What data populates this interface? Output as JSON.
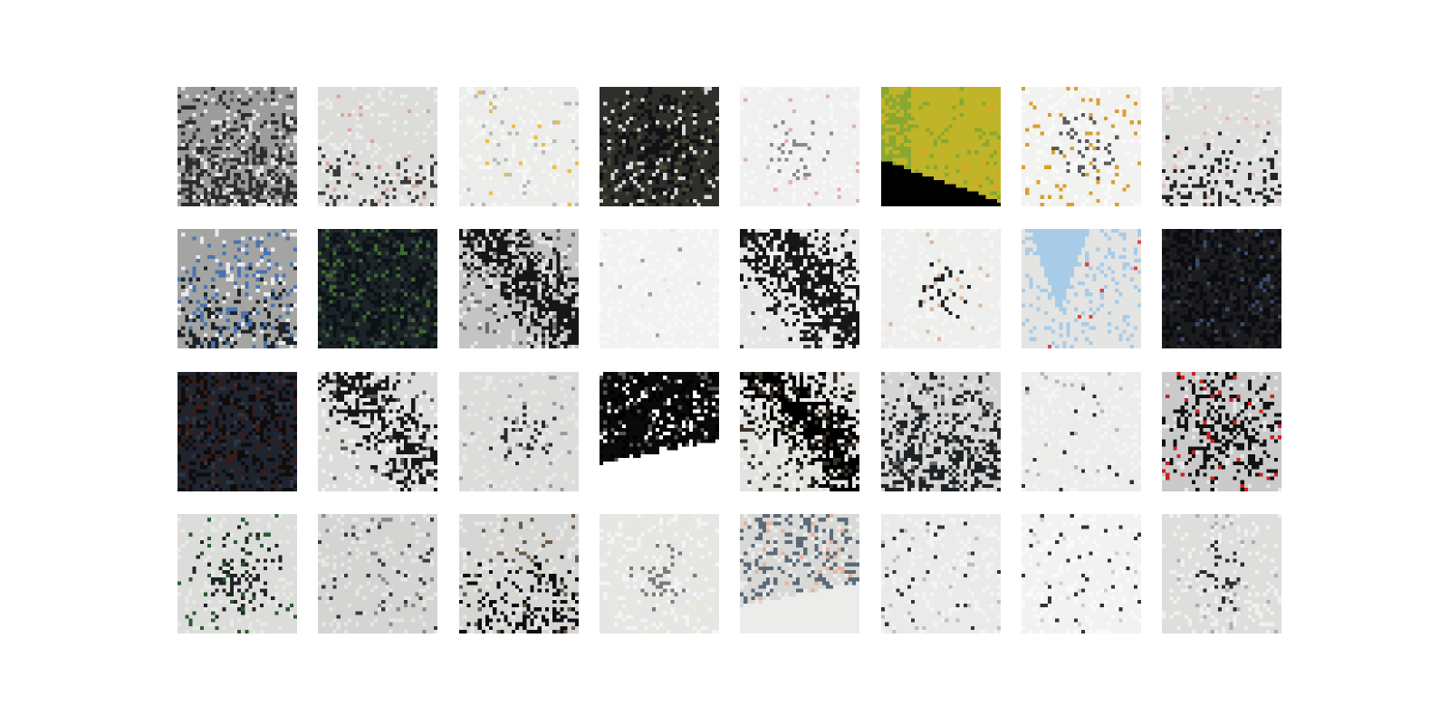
{
  "grid": {
    "rows": 4,
    "cols": 8,
    "tiles": [
      {
        "name": "tile-r1-c1",
        "base": "#9c9c9a",
        "light": "#e6e6e4",
        "dark": "#2c2c2e",
        "accent": "#5a5a5c",
        "dark_share": 0.3,
        "light_share": 0.18,
        "direction": "bottom",
        "accent_share": 0.04
      },
      {
        "name": "tile-r1-c2",
        "base": "#dcdcda",
        "light": "#ececea",
        "dark": "#3a3a3a",
        "accent": "#d8a8a0",
        "dark_share": 0.04,
        "light_share": 0.25,
        "direction": "bottom",
        "accent_share": 0.02
      },
      {
        "name": "tile-r1-c3",
        "base": "#ececea",
        "light": "#f6f6f4",
        "dark": "#b8b8b8",
        "accent": "#e8c040",
        "dark_share": 0.03,
        "light_share": 0.3,
        "direction": "none",
        "accent_share": 0.015
      },
      {
        "name": "tile-r1-c4",
        "base": "#2e2e2a",
        "light": "#d8d8d6",
        "dark": "#101214",
        "accent": "#4a4a38",
        "dark_share": 0.35,
        "light_share": 0.22,
        "direction": "center",
        "accent_share": 0.05
      },
      {
        "name": "tile-r1-c5",
        "base": "#f0f0f0",
        "light": "#f8f8f8",
        "dark": "#8a8a8a",
        "accent": "#e0b0b0",
        "dark_share": 0.03,
        "light_share": 0.3,
        "direction": "center",
        "accent_share": 0.02
      },
      {
        "name": "tile-r1-c6",
        "base": "#c0b428",
        "light": "#8aa830",
        "dark": "#000000",
        "accent": "#e8a020",
        "dark_share": 0.12,
        "light_share": 0.18,
        "direction": "yellow",
        "accent_share": 0.02
      },
      {
        "name": "tile-r1-c7",
        "base": "#f2f2f0",
        "light": "#fafafa",
        "dark": "#5a5a5a",
        "accent": "#d8a030",
        "dark_share": 0.05,
        "light_share": 0.25,
        "direction": "center",
        "accent_share": 0.06
      },
      {
        "name": "tile-r1-c8",
        "base": "#dededc",
        "light": "#ececea",
        "dark": "#202428",
        "accent": "#e8b8b0",
        "dark_share": 0.07,
        "light_share": 0.25,
        "direction": "bottom",
        "accent_share": 0.015
      },
      {
        "name": "tile-r2-c1",
        "base": "#a4a4a2",
        "light": "#eaeaea",
        "dark": "#1e2226",
        "accent": "#4a74b0",
        "dark_share": 0.12,
        "light_share": 0.15,
        "direction": "bottom",
        "accent_share": 0.12
      },
      {
        "name": "tile-r2-c2",
        "base": "#1c2428",
        "light": "#34403c",
        "dark": "#0c1216",
        "accent": "#3e6a30",
        "dark_share": 0.35,
        "light_share": 0.15,
        "direction": "none",
        "accent_share": 0.08
      },
      {
        "name": "tile-r2-c3",
        "base": "#c4c4c2",
        "light": "#e8e8e6",
        "dark": "#141618",
        "accent": "#6a6a6a",
        "dark_share": 0.35,
        "light_share": 0.2,
        "direction": "diagonal",
        "accent_share": 0.05
      },
      {
        "name": "tile-r2-c4",
        "base": "#f2f2f2",
        "light": "#f8f8f8",
        "dark": "#9aa0a8",
        "accent": "#e6e6e6",
        "dark_share": 0.005,
        "light_share": 0.4,
        "direction": "none",
        "accent_share": 0.005
      },
      {
        "name": "tile-r2-c5",
        "base": "#e6e6e4",
        "light": "#f2f2f2",
        "dark": "#141618",
        "accent": "#3a3a3a",
        "dark_share": 0.45,
        "light_share": 0.2,
        "direction": "diagonal",
        "accent_share": 0.05
      },
      {
        "name": "tile-r2-c6",
        "base": "#eeeeec",
        "light": "#f6f6f6",
        "dark": "#1c2024",
        "accent": "#d8b8a0",
        "dark_share": 0.05,
        "light_share": 0.3,
        "direction": "center",
        "accent_share": 0.02
      },
      {
        "name": "tile-r2-c7",
        "base": "#e4e4e2",
        "light": "#a8cce8",
        "dark": "#4a4a4a",
        "accent": "#e04040",
        "dark_share": 0.04,
        "light_share": 0.35,
        "direction": "sky",
        "accent_share": 0.01
      },
      {
        "name": "tile-r2-c8",
        "base": "#1c1c1e",
        "light": "#2c2c2c",
        "dark": "#0a0c12",
        "accent": "#3a4a6a",
        "dark_share": 0.35,
        "light_share": 0.15,
        "direction": "none",
        "accent_share": 0.04
      },
      {
        "name": "tile-r3-c1",
        "base": "#1e2430",
        "light": "#2e3440",
        "dark": "#100c0c",
        "accent": "#3a1c18",
        "dark_share": 0.3,
        "light_share": 0.15,
        "direction": "none",
        "accent_share": 0.1
      },
      {
        "name": "tile-r3-c2",
        "base": "#dcdcda",
        "light": "#f2f2f2",
        "dark": "#141618",
        "accent": "#5a5a5a",
        "dark_share": 0.25,
        "light_share": 0.2,
        "direction": "diagonal",
        "accent_share": 0.05
      },
      {
        "name": "tile-r3-c3",
        "base": "#dcdcda",
        "light": "#e8e8e6",
        "dark": "#2a2a2a",
        "accent": "#9a9a9a",
        "dark_share": 0.04,
        "light_share": 0.25,
        "direction": "center",
        "accent_share": 0.03
      },
      {
        "name": "tile-r3-c4",
        "base": "#000000",
        "light": "#ffffff",
        "dark": "#0a0a0a",
        "accent": "#505658",
        "dark_share": 0.4,
        "light_share": 0.2,
        "direction": "bottom-white",
        "accent_share": 0.1
      },
      {
        "name": "tile-r3-c5",
        "base": "#e2e2e0",
        "light": "#f0f0f0",
        "dark": "#000000",
        "accent": "#3a3228",
        "dark_share": 0.4,
        "light_share": 0.2,
        "direction": "diagonal",
        "accent_share": 0.12
      },
      {
        "name": "tile-r3-c6",
        "base": "#d4d4d2",
        "light": "#e4e4e2",
        "dark": "#1e2226",
        "accent": "#6a6a6a",
        "dark_share": 0.3,
        "light_share": 0.2,
        "direction": "bottom",
        "accent_share": 0.05
      },
      {
        "name": "tile-r3-c7",
        "base": "#ececea",
        "light": "#f4f4f4",
        "dark": "#2a3040",
        "accent": "#b0b8c0",
        "dark_share": 0.01,
        "light_share": 0.35,
        "direction": "none",
        "accent_share": 0.02
      },
      {
        "name": "tile-r3-c8",
        "base": "#cacaca",
        "light": "#e8e8e8",
        "dark": "#101214",
        "accent": "#d02020",
        "dark_share": 0.3,
        "light_share": 0.15,
        "direction": "center",
        "accent_share": 0.03
      },
      {
        "name": "tile-r4-c1",
        "base": "#dcdcda",
        "light": "#e8e8e6",
        "dark": "#202224",
        "accent": "#2a5a30",
        "dark_share": 0.15,
        "light_share": 0.2,
        "direction": "center",
        "accent_share": 0.04
      },
      {
        "name": "tile-r4-c2",
        "base": "#d4d4d2",
        "light": "#e6e6e4",
        "dark": "#3a3a3a",
        "accent": "#8a8a8a",
        "dark_share": 0.04,
        "light_share": 0.25,
        "direction": "none",
        "accent_share": 0.03
      },
      {
        "name": "tile-r4-c3",
        "base": "#d6d6d4",
        "light": "#e8e8e8",
        "dark": "#0c0e10",
        "accent": "#6a5a48",
        "dark_share": 0.12,
        "light_share": 0.2,
        "direction": "bottom",
        "accent_share": 0.04
      },
      {
        "name": "tile-r4-c4",
        "base": "#e6e6e4",
        "light": "#f4f4f2",
        "dark": "#7a7a7a",
        "accent": "#f0e8d8",
        "dark_share": 0.03,
        "light_share": 0.3,
        "direction": "center",
        "accent_share": 0.04
      },
      {
        "name": "tile-r4-c5",
        "base": "#d8d8d6",
        "light": "#ececea",
        "dark": "#5a6a78",
        "accent": "#e8b098",
        "dark_share": 0.03,
        "light_share": 0.25,
        "direction": "bottom-white",
        "accent_share": 0.03
      },
      {
        "name": "tile-r4-c6",
        "base": "#eaeaea",
        "light": "#f4f4f4",
        "dark": "#303438",
        "accent": "#b8c0c8",
        "dark_share": 0.03,
        "light_share": 0.3,
        "direction": "none",
        "accent_share": 0.03
      },
      {
        "name": "tile-r4-c7",
        "base": "#f2f2f2",
        "light": "#fafafa",
        "dark": "#303438",
        "accent": "#c8d0d8",
        "dark_share": 0.03,
        "light_share": 0.35,
        "direction": "none",
        "accent_share": 0.02
      },
      {
        "name": "tile-r4-c8",
        "base": "#dededc",
        "light": "#f0f0ee",
        "dark": "#2a2e34",
        "accent": "#a8b0b8",
        "dark_share": 0.04,
        "light_share": 0.3,
        "direction": "center",
        "accent_share": 0.03
      }
    ]
  }
}
